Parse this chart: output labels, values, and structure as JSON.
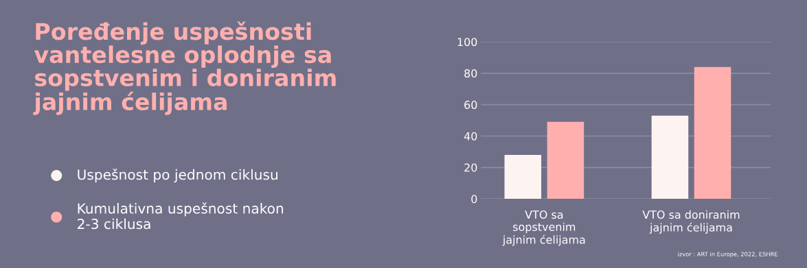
{
  "chart_data": {
    "type": "bar",
    "title": "Poređenje uspešnosti\nvantelesne oplodnje sa\nsopstvenim i doniranim\njajnim ćelijama",
    "categories": [
      "VTO sa\nsopstvenim\njajnim ćelijama",
      "VTO sa doniranim\njajnim ćelijama"
    ],
    "series": [
      {
        "name": "Uspešnost po jednom ciklusu",
        "color": "#fdf4f2",
        "values": [
          28,
          53
        ]
      },
      {
        "name": "Kumulativna uspešnost nakon\n2-3 ciklusa",
        "color": "#ffb0ae",
        "values": [
          49,
          84
        ]
      }
    ],
    "ylim": [
      0,
      100
    ],
    "yticks": [
      0,
      20,
      40,
      60,
      80,
      100
    ],
    "grid": "y",
    "legend": "left",
    "annotations": [
      "izvor : ART in Europe, 2022, ESHRE"
    ]
  }
}
